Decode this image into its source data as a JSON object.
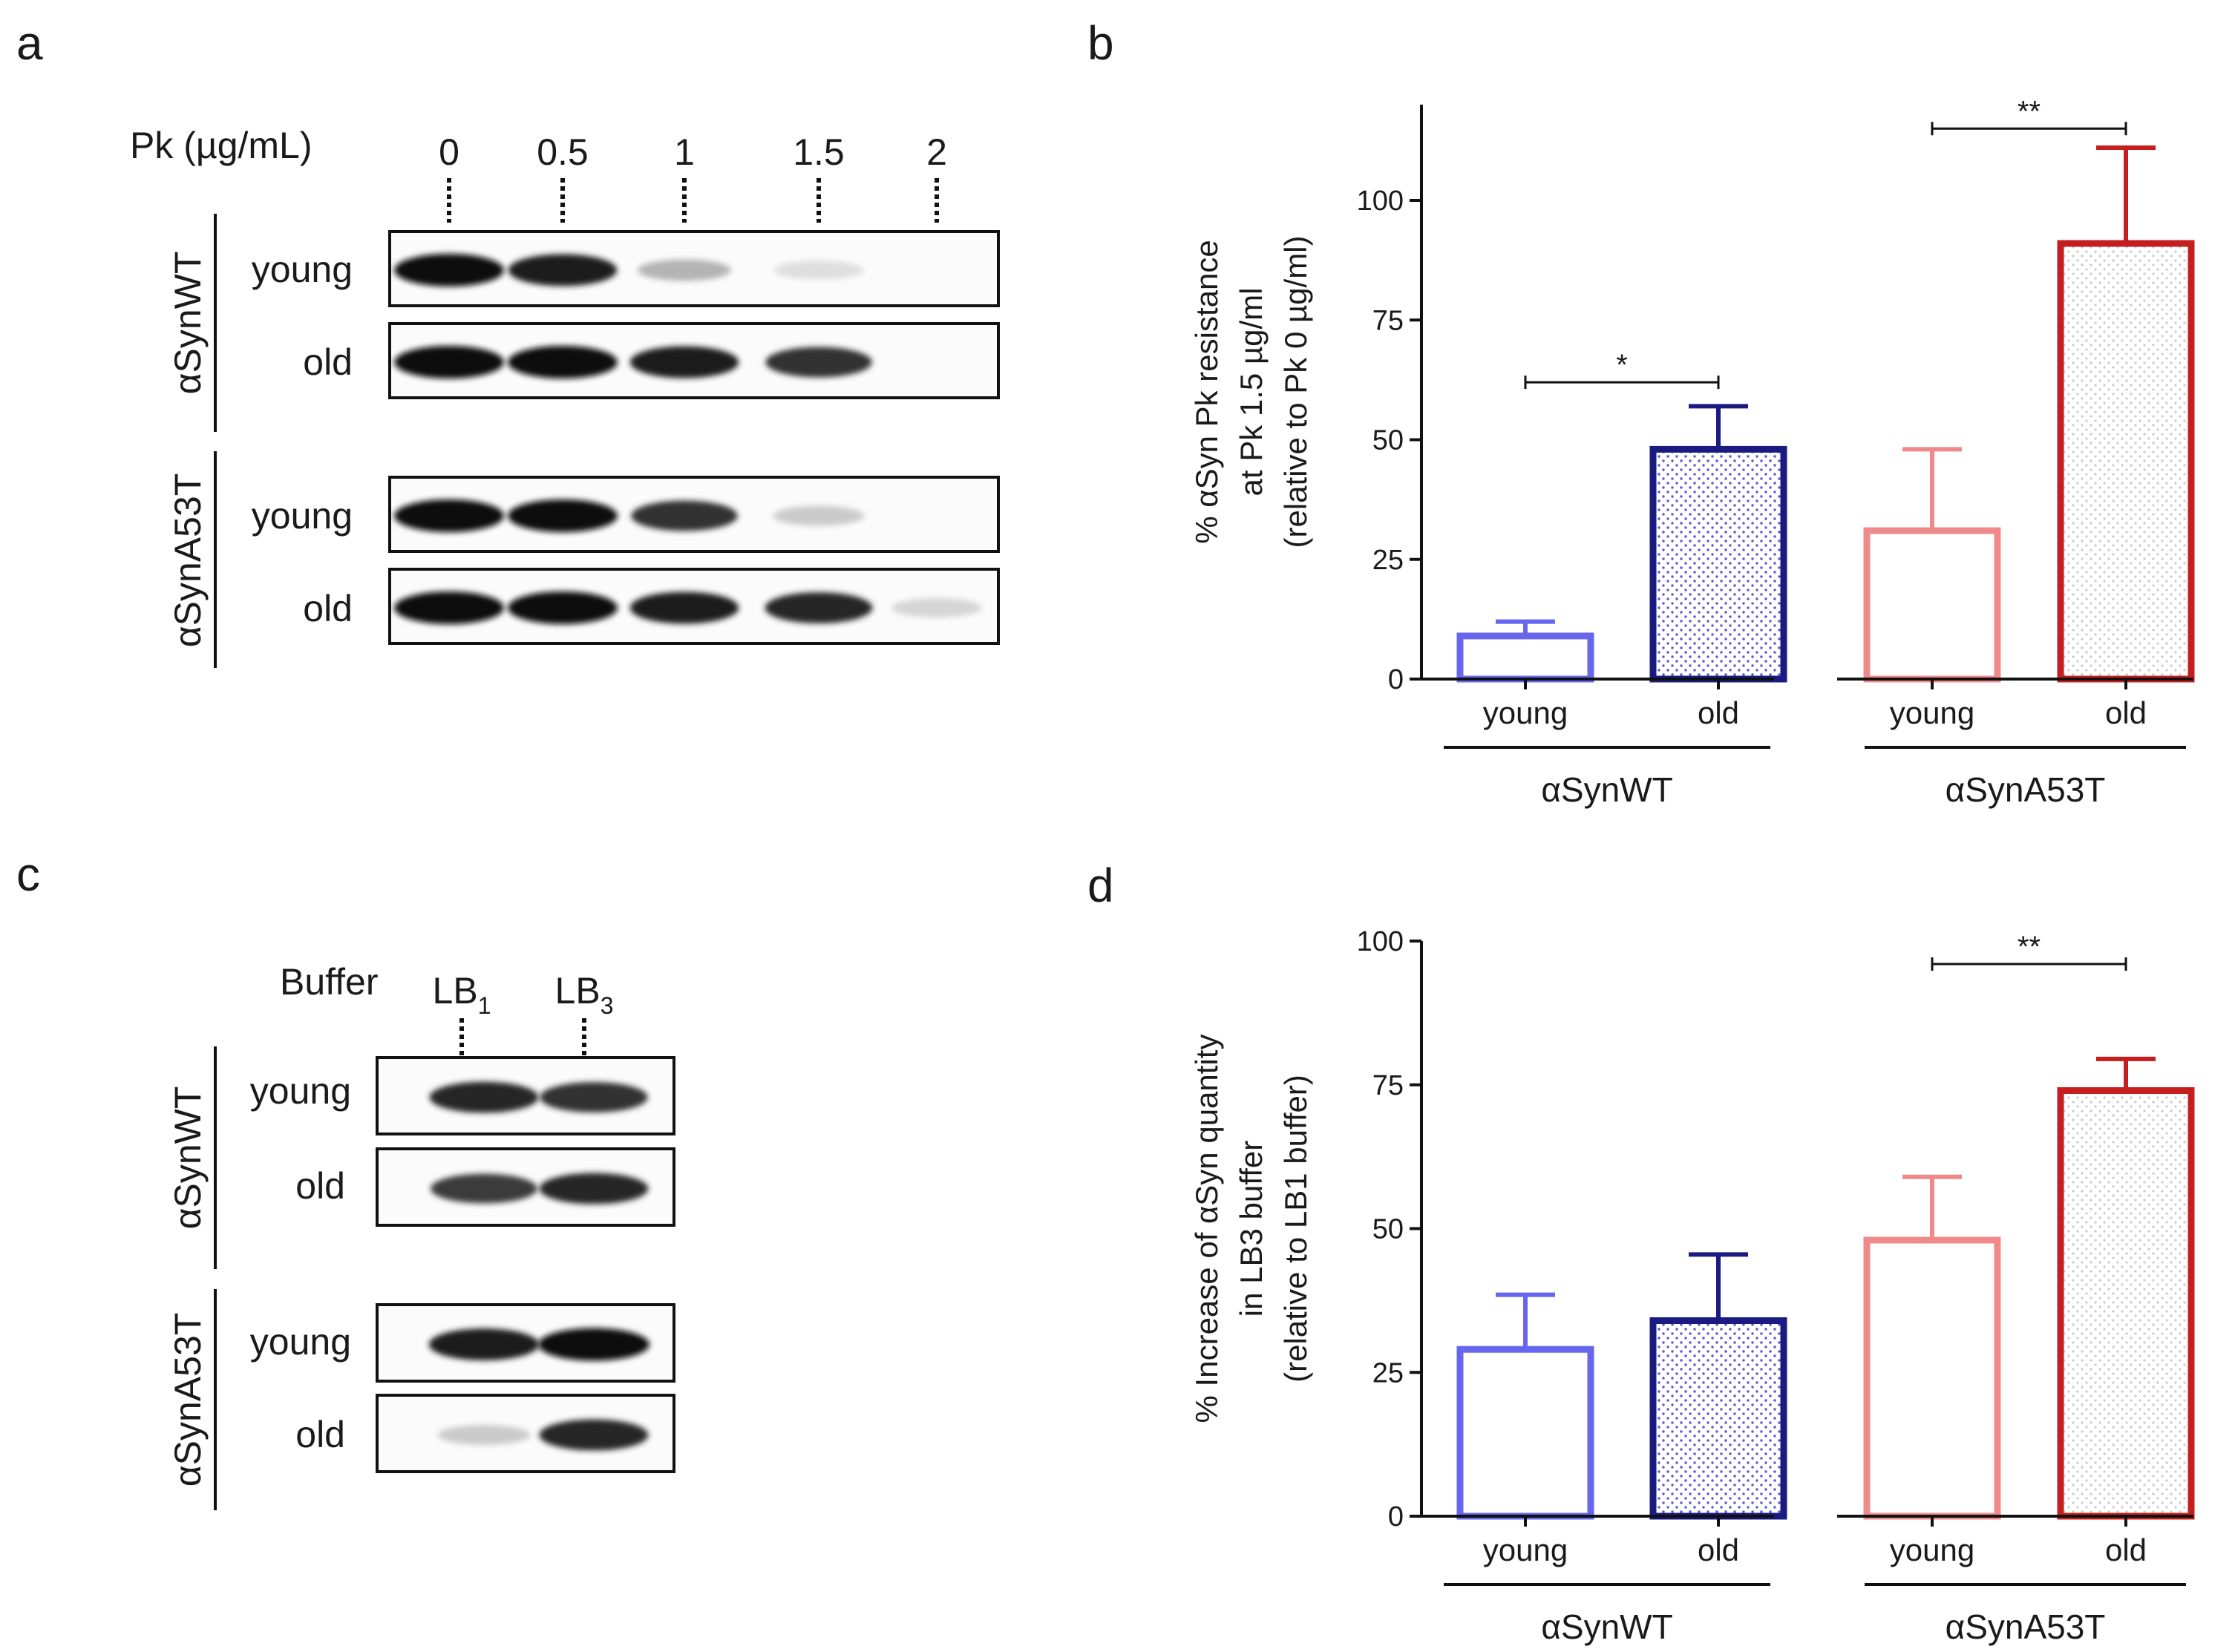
{
  "figure": {
    "panel_letters": [
      "a",
      "b",
      "c",
      "d"
    ]
  },
  "blot_a": {
    "axis_label": "Pk (µg/mL)",
    "lanes": [
      "0",
      "0.5",
      "1",
      "1.5",
      "2"
    ],
    "groups": [
      {
        "label": "αSynWT",
        "rows": [
          {
            "label": "young",
            "intensities": [
              1.0,
              0.95,
              0.25,
              0.06,
              0.0
            ]
          },
          {
            "label": "old",
            "intensities": [
              1.0,
              1.0,
              0.95,
              0.85,
              0.0
            ]
          }
        ]
      },
      {
        "label": "αSynA53T",
        "rows": [
          {
            "label": "young",
            "intensities": [
              1.0,
              1.0,
              0.85,
              0.15,
              0.0
            ]
          },
          {
            "label": "old",
            "intensities": [
              1.0,
              1.0,
              0.95,
              0.9,
              0.1
            ]
          }
        ]
      }
    ]
  },
  "blot_c": {
    "axis_label": "Buffer",
    "lanes": [
      {
        "main": "LB",
        "sub": "1"
      },
      {
        "main": "LB",
        "sub": "3"
      }
    ],
    "groups": [
      {
        "label": "αSynWT",
        "rows": [
          {
            "label": "young",
            "intensities": [
              0.9,
              0.85
            ]
          },
          {
            "label": "old",
            "intensities": [
              0.8,
              0.9
            ]
          }
        ]
      },
      {
        "label": "αSynA53T",
        "rows": [
          {
            "label": "young",
            "intensities": [
              0.95,
              1.0
            ]
          },
          {
            "label": "old",
            "intensities": [
              0.15,
              0.9
            ]
          }
        ]
      }
    ]
  },
  "chart_data": [
    {
      "type": "bar",
      "panel": "b",
      "ylabel_lines": [
        "% αSyn Pk resistance",
        "at Pk 1.5 µg/ml",
        "(relative to Pk 0 µg/ml)"
      ],
      "ylim": [
        0,
        120
      ],
      "yticks": [
        0,
        25,
        50,
        75,
        100
      ],
      "categories": [
        "young",
        "old",
        "young",
        "old"
      ],
      "groups": [
        "αSynWT",
        "αSynA53T"
      ],
      "values": [
        9,
        48,
        31,
        91
      ],
      "errors": [
        3,
        9,
        17,
        20
      ],
      "colors": [
        "#6666ee",
        "#1a1a80",
        "#f08a8a",
        "#c41e1e"
      ],
      "pattern": [
        false,
        true,
        false,
        true
      ],
      "significance": [
        {
          "from": 0,
          "to": 1,
          "label": "*",
          "y": 62
        },
        {
          "from": 2,
          "to": 3,
          "label": "**",
          "y": 115
        }
      ]
    },
    {
      "type": "bar",
      "panel": "d",
      "ylabel_lines": [
        "% Increase of αSyn quantity",
        "in LB3 buffer",
        "(relative to LB1 buffer)"
      ],
      "ylim": [
        0,
        100
      ],
      "yticks": [
        0,
        25,
        50,
        75,
        100
      ],
      "categories": [
        "young",
        "old",
        "young",
        "old"
      ],
      "groups": [
        "αSynWT",
        "αSynA53T"
      ],
      "values": [
        29,
        34,
        48,
        74
      ],
      "errors": [
        9.5,
        11.5,
        11,
        5.5
      ],
      "colors": [
        "#6666ee",
        "#1a1a80",
        "#f08a8a",
        "#c41e1e"
      ],
      "pattern": [
        false,
        true,
        false,
        true
      ],
      "significance": [
        {
          "from": 2,
          "to": 3,
          "label": "**",
          "y": 96
        }
      ]
    }
  ]
}
